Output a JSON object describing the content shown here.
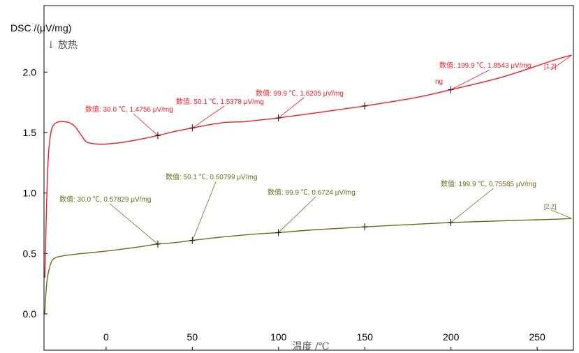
{
  "chart_data": {
    "type": "line",
    "ylabel": "DSC /(μV/mg)",
    "ylabel_sub": "↓ 放热",
    "xlabel": "温度 /℃",
    "xlim": [
      -36,
      271
    ],
    "ylim": [
      -0.3,
      2.55
    ],
    "xticks": [
      0,
      50,
      100,
      150,
      200,
      250
    ],
    "yticks": [
      0.0,
      0.5,
      1.0,
      1.5,
      2.0
    ],
    "series": [
      {
        "name": "[1,2]",
        "color": "#ee1c24",
        "points": [
          [
            -35.5,
            0.3
          ],
          [
            -34.5,
            0.9
          ],
          [
            -33.5,
            1.3
          ],
          [
            -32,
            1.5
          ],
          [
            -30,
            1.57
          ],
          [
            -27,
            1.59
          ],
          [
            -24,
            1.59
          ],
          [
            -21,
            1.58
          ],
          [
            -18,
            1.55
          ],
          [
            -16,
            1.51
          ],
          [
            -14,
            1.47
          ],
          [
            -12,
            1.43
          ],
          [
            -10,
            1.415
          ],
          [
            -5,
            1.405
          ],
          [
            0,
            1.405
          ],
          [
            10,
            1.42
          ],
          [
            20,
            1.445
          ],
          [
            30,
            1.4756
          ],
          [
            40,
            1.51
          ],
          [
            50,
            1.5378
          ],
          [
            60,
            1.565
          ],
          [
            70,
            1.585
          ],
          [
            80,
            1.59
          ],
          [
            90,
            1.605
          ],
          [
            99.9,
            1.6205
          ],
          [
            120,
            1.66
          ],
          [
            150,
            1.72
          ],
          [
            180,
            1.79
          ],
          [
            199.9,
            1.8543
          ],
          [
            230,
            1.96
          ],
          [
            260,
            2.1
          ],
          [
            270,
            2.14
          ]
        ]
      },
      {
        "name": "[2,2]",
        "color": "#6b6b1a",
        "points": [
          [
            -35.5,
            0.0
          ],
          [
            -35,
            0.15
          ],
          [
            -34,
            0.3
          ],
          [
            -32,
            0.42
          ],
          [
            -30,
            0.46
          ],
          [
            -27,
            0.475
          ],
          [
            -20,
            0.49
          ],
          [
            -10,
            0.505
          ],
          [
            0,
            0.52
          ],
          [
            10,
            0.537
          ],
          [
            20,
            0.556
          ],
          [
            30,
            0.57829
          ],
          [
            40,
            0.59
          ],
          [
            50,
            0.60799
          ],
          [
            60,
            0.625
          ],
          [
            70,
            0.64
          ],
          [
            80,
            0.653
          ],
          [
            90,
            0.664
          ],
          [
            99.9,
            0.6724
          ],
          [
            120,
            0.695
          ],
          [
            150,
            0.72
          ],
          [
            180,
            0.742
          ],
          [
            199.9,
            0.75585
          ],
          [
            230,
            0.77
          ],
          [
            260,
            0.783
          ],
          [
            270,
            0.79
          ]
        ]
      }
    ],
    "markers": [
      {
        "series": 0,
        "x": [
          30,
          50,
          99.9,
          150,
          199.9
        ]
      },
      {
        "series": 1,
        "x": [
          30,
          50,
          99.9,
          150,
          199.9
        ]
      }
    ],
    "annotations": [
      {
        "series": 0,
        "x": 30.0,
        "y": 1.4756,
        "text": "数值: 30.0 ℃, 1.4756 μV/mg"
      },
      {
        "series": 0,
        "x": 50.1,
        "y": 1.5378,
        "text": "数值: 50.1 ℃, 1.5378 μV/mg"
      },
      {
        "series": 0,
        "x": 99.9,
        "y": 1.6205,
        "text": "数值: 99.9 ℃, 1.6205 μV/mg"
      },
      {
        "series": 0,
        "x": 199.9,
        "y": 1.8543,
        "text": "数值: 199.9 ℃, 1.8543 μV/mg"
      },
      {
        "series": 1,
        "x": 30.0,
        "y": 0.57829,
        "text": "数值: 30.0 ℃, 0.57829 μV/mg"
      },
      {
        "series": 1,
        "x": 50.1,
        "y": 0.60799,
        "text": "数值: 50.1 ℃, 0.60799 μV/mg"
      },
      {
        "series": 1,
        "x": 99.9,
        "y": 0.6724,
        "text": "数值: 99.9 ℃, 0.6724 μV/mg"
      },
      {
        "series": 1,
        "x": 199.9,
        "y": 0.75585,
        "text": "数值: 199.9 ℃, 0.75585 μV/mg"
      }
    ],
    "series_tags": [
      "[1,2]",
      "[2,2]"
    ],
    "extra_text": "ng"
  }
}
